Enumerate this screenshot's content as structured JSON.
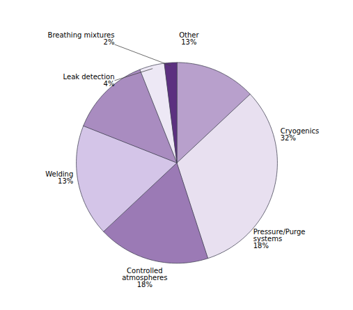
{
  "chart_data": {
    "type": "pie",
    "categories": [
      "Other",
      "Cryogenics",
      "Pressure/Purge\nsystems",
      "Controlled\natmospheres",
      "Welding",
      "Leak detection",
      "Breathing mixtures"
    ],
    "values": [
      13,
      32,
      18,
      18,
      13,
      4,
      2
    ],
    "value_labels": [
      "13%",
      "32%",
      "18%",
      "18%",
      "13%",
      "4%",
      "2%"
    ],
    "colors": [
      "#b8a0cc",
      "#e8e0f0",
      "#9b7ab5",
      "#d4c5e8",
      "#a98cc0",
      "#ede8f5",
      "#5c3080"
    ],
    "data_labels": true
  }
}
